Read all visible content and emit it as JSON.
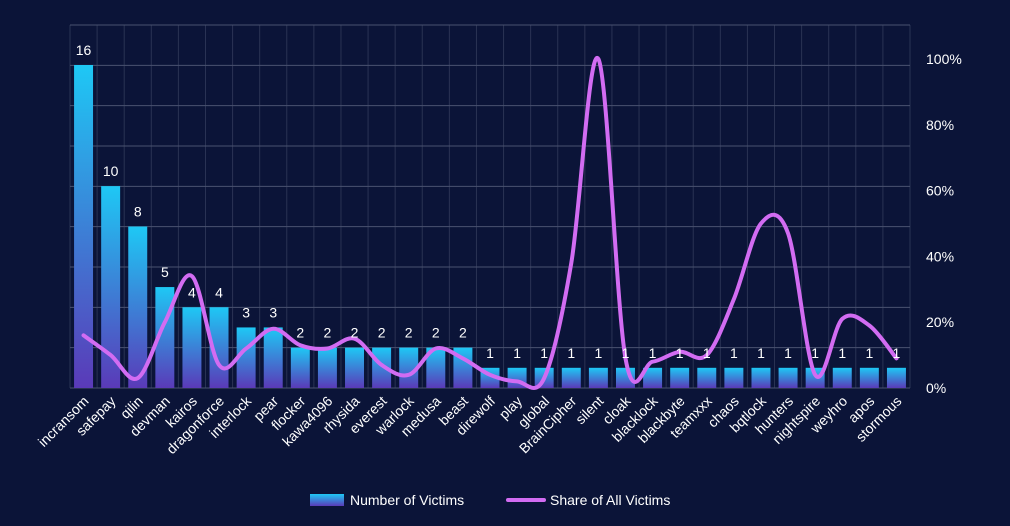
{
  "chart_data": {
    "type": "bar",
    "categories": [
      "incransom",
      "safepay",
      "qilin",
      "devman",
      "kairos",
      "dragonforce",
      "interlock",
      "pear",
      "flocker",
      "kawa4096",
      "rhysida",
      "everest",
      "warlock",
      "medusa",
      "beast",
      "direwolf",
      "play",
      "global",
      "BrainCipher",
      "silent",
      "cloak",
      "blacklock",
      "blackbyte",
      "teamxxx",
      "chaos",
      "bqtlock",
      "hunters",
      "nightspire",
      "weyhro",
      "apos",
      "stormous"
    ],
    "series": [
      {
        "name": "Number of Victims",
        "type": "bar",
        "axis": "left",
        "values": [
          16,
          10,
          8,
          5,
          4,
          4,
          3,
          3,
          2,
          2,
          2,
          2,
          2,
          2,
          2,
          1,
          1,
          1,
          1,
          1,
          1,
          1,
          1,
          1,
          1,
          1,
          1,
          1,
          1,
          1,
          1
        ]
      },
      {
        "name": "Share of All Victims",
        "type": "line",
        "axis": "right",
        "values": [
          16,
          10,
          3,
          20,
          34,
          7,
          12,
          18,
          13,
          12,
          15,
          7,
          4,
          12,
          9,
          4,
          2,
          3,
          38,
          100,
          9,
          8,
          11,
          10,
          27,
          50,
          47,
          4,
          21,
          19,
          9
        ]
      }
    ],
    "ylim_left": [
      0,
      20
    ],
    "ylim_right": [
      0,
      100
    ],
    "y_right_ticks": [
      "0%",
      "20%",
      "40%",
      "60%",
      "80%",
      "100%"
    ],
    "grid": true,
    "legend_position": "bottom",
    "colors": {
      "background": "#0b1438",
      "bar_top": "#1ec8f5",
      "bar_bottom": "#5a3ab8",
      "line": "#d26cf2",
      "grid": "#4a5270",
      "text": "#ffffff"
    }
  }
}
